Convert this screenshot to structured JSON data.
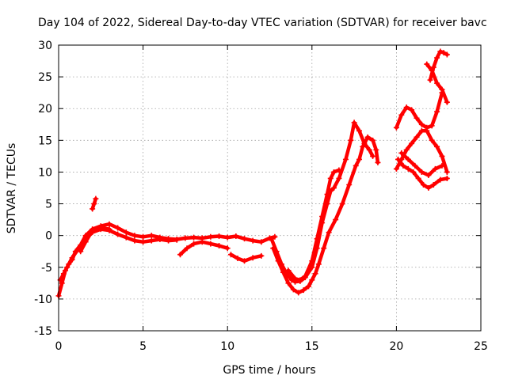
{
  "chart_data": {
    "type": "scatter",
    "title": "Day 104 of 2022, Sidereal Day-to-day VTEC variation (SDTVAR) for receiver bavc",
    "xlabel": "GPS time / hours",
    "ylabel": "SDTVAR / TECUs",
    "xlim": [
      0,
      25
    ],
    "ylim": [
      -15,
      30
    ],
    "xticks": [
      0,
      5,
      10,
      15,
      20,
      25
    ],
    "yticks": [
      -15,
      -10,
      -5,
      0,
      5,
      10,
      15,
      20,
      25,
      30
    ],
    "xtick_labels": [
      "0",
      "5",
      "10",
      "15",
      "20",
      "25"
    ],
    "ytick_labels": [
      "-15",
      "-10",
      "-5",
      "0",
      "5",
      "10",
      "15",
      "20",
      "25",
      "30"
    ],
    "grid": true,
    "marker": "+",
    "color": "#ff0000",
    "series": [
      {
        "name": "track-1",
        "points": [
          [
            0.0,
            -9.5
          ],
          [
            0.2,
            -7.5
          ],
          [
            0.4,
            -5.5
          ],
          [
            0.6,
            -4.5
          ],
          [
            0.8,
            -3.8
          ],
          [
            1.0,
            -2.5
          ],
          [
            1.3,
            -1.5
          ],
          [
            1.6,
            0.0
          ],
          [
            2.0,
            1.0
          ],
          [
            2.5,
            1.5
          ],
          [
            3.0,
            1.8
          ],
          [
            3.5,
            1.2
          ],
          [
            4.0,
            0.5
          ],
          [
            4.5,
            0.0
          ],
          [
            5.0,
            -0.2
          ],
          [
            5.5,
            0.0
          ],
          [
            6.0,
            -0.3
          ],
          [
            6.5,
            -0.5
          ],
          [
            7.0,
            -0.6
          ],
          [
            7.5,
            -0.4
          ],
          [
            8.0,
            -0.3
          ],
          [
            8.5,
            -0.4
          ],
          [
            9.0,
            -0.2
          ],
          [
            9.5,
            -0.1
          ],
          [
            10.0,
            -0.3
          ],
          [
            10.5,
            -0.1
          ],
          [
            11.0,
            -0.5
          ],
          [
            11.5,
            -0.8
          ],
          [
            12.0,
            -1.0
          ],
          [
            12.5,
            -0.4
          ],
          [
            12.8,
            -0.2
          ]
        ]
      },
      {
        "name": "track-2",
        "points": [
          [
            0.1,
            -7.0
          ],
          [
            0.3,
            -6.0
          ],
          [
            0.5,
            -5.0
          ],
          [
            0.8,
            -3.5
          ],
          [
            1.2,
            -2.0
          ],
          [
            1.6,
            -0.5
          ],
          [
            2.0,
            0.5
          ],
          [
            2.5,
            1.0
          ],
          [
            3.0,
            0.8
          ],
          [
            3.5,
            0.2
          ],
          [
            4.0,
            -0.3
          ],
          [
            4.5,
            -0.8
          ],
          [
            5.0,
            -1.0
          ],
          [
            5.5,
            -0.8
          ],
          [
            6.0,
            -0.6
          ],
          [
            6.5,
            -0.8
          ],
          [
            7.0,
            -0.7
          ]
        ]
      },
      {
        "name": "track-3",
        "points": [
          [
            1.3,
            -2.5
          ],
          [
            1.6,
            -1.0
          ],
          [
            2.0,
            0.8
          ],
          [
            2.5,
            1.2
          ],
          [
            3.0,
            1.0
          ]
        ]
      },
      {
        "name": "track-4",
        "points": [
          [
            2.0,
            4.2
          ],
          [
            2.1,
            5.0
          ],
          [
            2.2,
            5.8
          ]
        ]
      },
      {
        "name": "track-5",
        "points": [
          [
            7.2,
            -3.0
          ],
          [
            7.6,
            -2.0
          ],
          [
            8.0,
            -1.3
          ],
          [
            8.5,
            -1.0
          ],
          [
            9.0,
            -1.3
          ],
          [
            9.5,
            -1.6
          ],
          [
            10.0,
            -2.0
          ]
        ]
      },
      {
        "name": "track-6",
        "points": [
          [
            10.2,
            -3.0
          ],
          [
            10.6,
            -3.6
          ],
          [
            11.0,
            -4.0
          ],
          [
            11.5,
            -3.5
          ],
          [
            12.0,
            -3.2
          ]
        ]
      },
      {
        "name": "track-7",
        "points": [
          [
            12.6,
            -0.5
          ],
          [
            12.9,
            -2.5
          ],
          [
            13.2,
            -4.5
          ],
          [
            13.5,
            -6.0
          ],
          [
            13.8,
            -7.0
          ],
          [
            14.0,
            -7.3
          ],
          [
            14.3,
            -7.2
          ],
          [
            14.6,
            -6.6
          ],
          [
            15.0,
            -5.0
          ],
          [
            15.3,
            -2.0
          ],
          [
            15.6,
            2.0
          ],
          [
            15.9,
            5.0
          ],
          [
            16.1,
            7.0
          ],
          [
            16.3,
            7.5
          ],
          [
            16.6,
            9.0
          ],
          [
            17.0,
            12.0
          ],
          [
            17.3,
            15.0
          ],
          [
            17.5,
            17.8
          ],
          [
            17.8,
            16.5
          ],
          [
            18.1,
            14.5
          ],
          [
            18.4,
            13.5
          ],
          [
            18.6,
            12.5
          ]
        ]
      },
      {
        "name": "track-8",
        "points": [
          [
            12.7,
            -2.0
          ],
          [
            13.0,
            -4.0
          ],
          [
            13.3,
            -5.8
          ],
          [
            13.6,
            -7.5
          ],
          [
            13.9,
            -8.5
          ],
          [
            14.2,
            -9.0
          ],
          [
            14.5,
            -8.6
          ],
          [
            14.8,
            -8.0
          ],
          [
            15.0,
            -7.0
          ],
          [
            15.2,
            -6.0
          ],
          [
            15.4,
            -4.5
          ],
          [
            15.7,
            -2.0
          ],
          [
            16.0,
            0.5
          ],
          [
            16.4,
            2.5
          ],
          [
            16.8,
            5.0
          ],
          [
            17.2,
            8.0
          ],
          [
            17.6,
            11.0
          ],
          [
            17.8,
            12.0
          ],
          [
            18.0,
            14.0
          ],
          [
            18.3,
            15.5
          ],
          [
            18.6,
            15.0
          ],
          [
            18.8,
            13.5
          ],
          [
            18.9,
            11.5
          ]
        ]
      },
      {
        "name": "track-9",
        "points": [
          [
            13.6,
            -5.5
          ],
          [
            14.0,
            -6.8
          ],
          [
            14.3,
            -7.0
          ],
          [
            14.6,
            -6.4
          ],
          [
            15.0,
            -4.0
          ],
          [
            15.3,
            -0.5
          ],
          [
            15.6,
            3.0
          ],
          [
            15.9,
            6.5
          ],
          [
            16.1,
            9.0
          ],
          [
            16.3,
            10.0
          ],
          [
            16.6,
            10.3
          ]
        ]
      },
      {
        "name": "track-10",
        "points": [
          [
            20.0,
            17.0
          ],
          [
            20.3,
            19.0
          ],
          [
            20.6,
            20.2
          ],
          [
            20.9,
            19.8
          ],
          [
            21.2,
            18.5
          ],
          [
            21.5,
            17.5
          ],
          [
            21.8,
            17.0
          ],
          [
            22.1,
            17.3
          ],
          [
            22.4,
            19.5
          ],
          [
            22.7,
            22.5
          ]
        ]
      },
      {
        "name": "track-11",
        "points": [
          [
            20.0,
            10.5
          ],
          [
            20.3,
            12.0
          ],
          [
            20.6,
            13.5
          ],
          [
            20.9,
            14.5
          ],
          [
            21.2,
            15.5
          ],
          [
            21.5,
            16.5
          ],
          [
            21.8,
            16.5
          ],
          [
            22.1,
            15.0
          ],
          [
            22.4,
            14.0
          ],
          [
            22.7,
            12.5
          ],
          [
            23.0,
            10.0
          ]
        ]
      },
      {
        "name": "track-12",
        "points": [
          [
            20.1,
            12.0
          ],
          [
            20.4,
            11.0
          ],
          [
            20.7,
            10.5
          ],
          [
            21.0,
            10.0
          ],
          [
            21.3,
            9.0
          ],
          [
            21.6,
            8.0
          ],
          [
            21.9,
            7.5
          ],
          [
            22.2,
            8.0
          ],
          [
            22.6,
            8.8
          ],
          [
            23.0,
            9.0
          ]
        ]
      },
      {
        "name": "track-13",
        "points": [
          [
            20.3,
            13.0
          ],
          [
            20.7,
            12.0
          ],
          [
            21.1,
            11.0
          ],
          [
            21.5,
            10.0
          ],
          [
            21.9,
            9.5
          ],
          [
            22.3,
            10.5
          ],
          [
            22.7,
            11.0
          ]
        ]
      },
      {
        "name": "track-14",
        "points": [
          [
            21.8,
            27.0
          ],
          [
            22.1,
            26.0
          ],
          [
            22.4,
            24.0
          ],
          [
            22.7,
            23.0
          ],
          [
            23.0,
            21.0
          ]
        ]
      },
      {
        "name": "track-15",
        "points": [
          [
            22.0,
            24.5
          ],
          [
            22.2,
            26.5
          ],
          [
            22.4,
            28.0
          ],
          [
            22.6,
            29.0
          ],
          [
            22.8,
            28.8
          ],
          [
            23.0,
            28.5
          ]
        ]
      }
    ]
  }
}
